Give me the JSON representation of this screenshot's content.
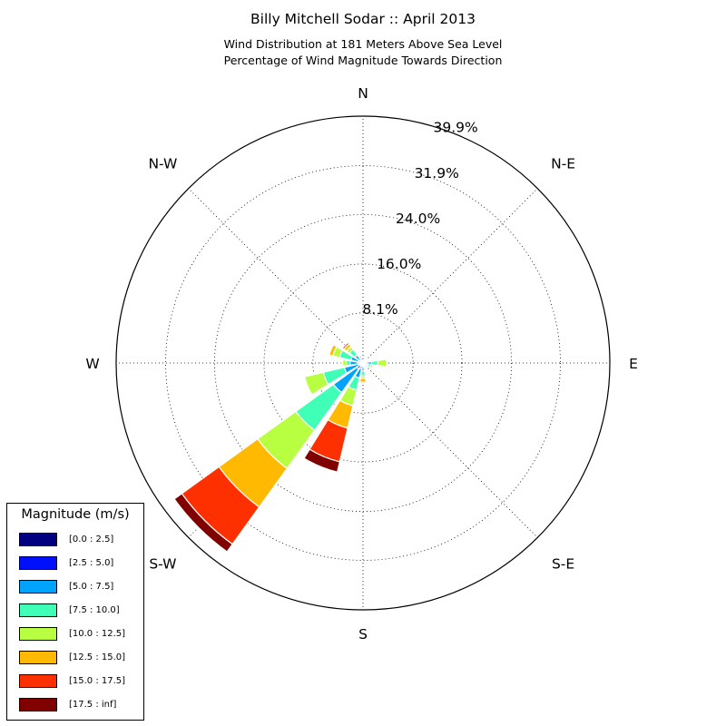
{
  "title": "Billy Mitchell Sodar :: April 2013",
  "subtitle_line1": "Wind Distribution at 181 Meters Above Sea Level",
  "subtitle_line2": "Percentage of Wind Magnitude Towards Direction",
  "chart_data": {
    "type": "windrose",
    "direction_labels": [
      "N",
      "N-E",
      "E",
      "S-E",
      "S",
      "S-W",
      "W",
      "N-W"
    ],
    "radial_ticks": [
      "8.1%",
      "16.0%",
      "24.0%",
      "31.9%",
      "39.9%"
    ],
    "radial_max": 39.9,
    "grid": true,
    "legend_title": "Magnitude (m/s)",
    "legend_position": "bottom-left",
    "bins": [
      {
        "label": "[0.0 : 2.5]",
        "color": "#000080"
      },
      {
        "label": "[2.5 : 5.0]",
        "color": "#0010ff"
      },
      {
        "label": "[5.0 : 7.5]",
        "color": "#00a4ff"
      },
      {
        "label": "[7.5 : 10.0]",
        "color": "#40ffb7"
      },
      {
        "label": "[10.0 : 12.5]",
        "color": "#b7ff40"
      },
      {
        "label": "[12.5 : 15.0]",
        "color": "#ffb900"
      },
      {
        "label": "[15.0 : 17.5]",
        "color": "#ff3000"
      },
      {
        "label": "[17.5 : inf]",
        "color": "#800000"
      }
    ],
    "sectors": [
      {
        "direction_deg": 0,
        "values": [
          0.1,
          0.3,
          0,
          0,
          0,
          0,
          0,
          0
        ]
      },
      {
        "direction_deg": 22.5,
        "values": [
          0.1,
          0.2,
          0.3,
          0,
          0,
          0,
          0,
          0
        ]
      },
      {
        "direction_deg": 45,
        "values": [
          0.1,
          0.3,
          0.3,
          0,
          0,
          0,
          0,
          0
        ]
      },
      {
        "direction_deg": 67.5,
        "values": [
          0.1,
          0.2,
          0.2,
          0.2,
          0,
          0,
          0,
          0
        ]
      },
      {
        "direction_deg": 90,
        "values": [
          0.1,
          0.3,
          1.0,
          1.0,
          1.4,
          0,
          0,
          0
        ]
      },
      {
        "direction_deg": 112.5,
        "values": [
          0.1,
          0.3,
          0.4,
          0.5,
          0.4,
          0,
          0,
          0
        ]
      },
      {
        "direction_deg": 135,
        "values": [
          0.1,
          0.3,
          0.4,
          0.2,
          0,
          0,
          0,
          0
        ]
      },
      {
        "direction_deg": 157.5,
        "values": [
          0.1,
          0.3,
          0.4,
          0.2,
          0.1,
          0.1,
          0.1,
          0
        ]
      },
      {
        "direction_deg": 180,
        "values": [
          0.1,
          0.4,
          0.8,
          0.8,
          0.4,
          0.6,
          0.2,
          0
        ]
      },
      {
        "direction_deg": 202.5,
        "values": [
          0.2,
          0.8,
          1.5,
          2.0,
          2.6,
          3.7,
          5.6,
          1.7
        ]
      },
      {
        "direction_deg": 225,
        "values": [
          0.2,
          1.0,
          4.7,
          7.5,
          7.6,
          7.7,
          7.4,
          1.5
        ]
      },
      {
        "direction_deg": 247.5,
        "values": [
          0.2,
          0.5,
          2.4,
          3.5,
          3.1,
          0,
          0,
          0
        ]
      },
      {
        "direction_deg": 270,
        "values": [
          0.2,
          0.6,
          1.3,
          0.6,
          0.6,
          0.2,
          0,
          0
        ]
      },
      {
        "direction_deg": 292.5,
        "values": [
          0.2,
          0.6,
          1.2,
          1.9,
          1.1,
          0.6,
          0,
          0
        ]
      },
      {
        "direction_deg": 315,
        "values": [
          0.1,
          0.5,
          1.0,
          1.1,
          0.6,
          0.5,
          0.3,
          0
        ]
      },
      {
        "direction_deg": 337.5,
        "values": [
          0.1,
          0.3,
          0.5,
          0.3,
          0.2,
          0.1,
          0,
          0
        ]
      }
    ]
  }
}
